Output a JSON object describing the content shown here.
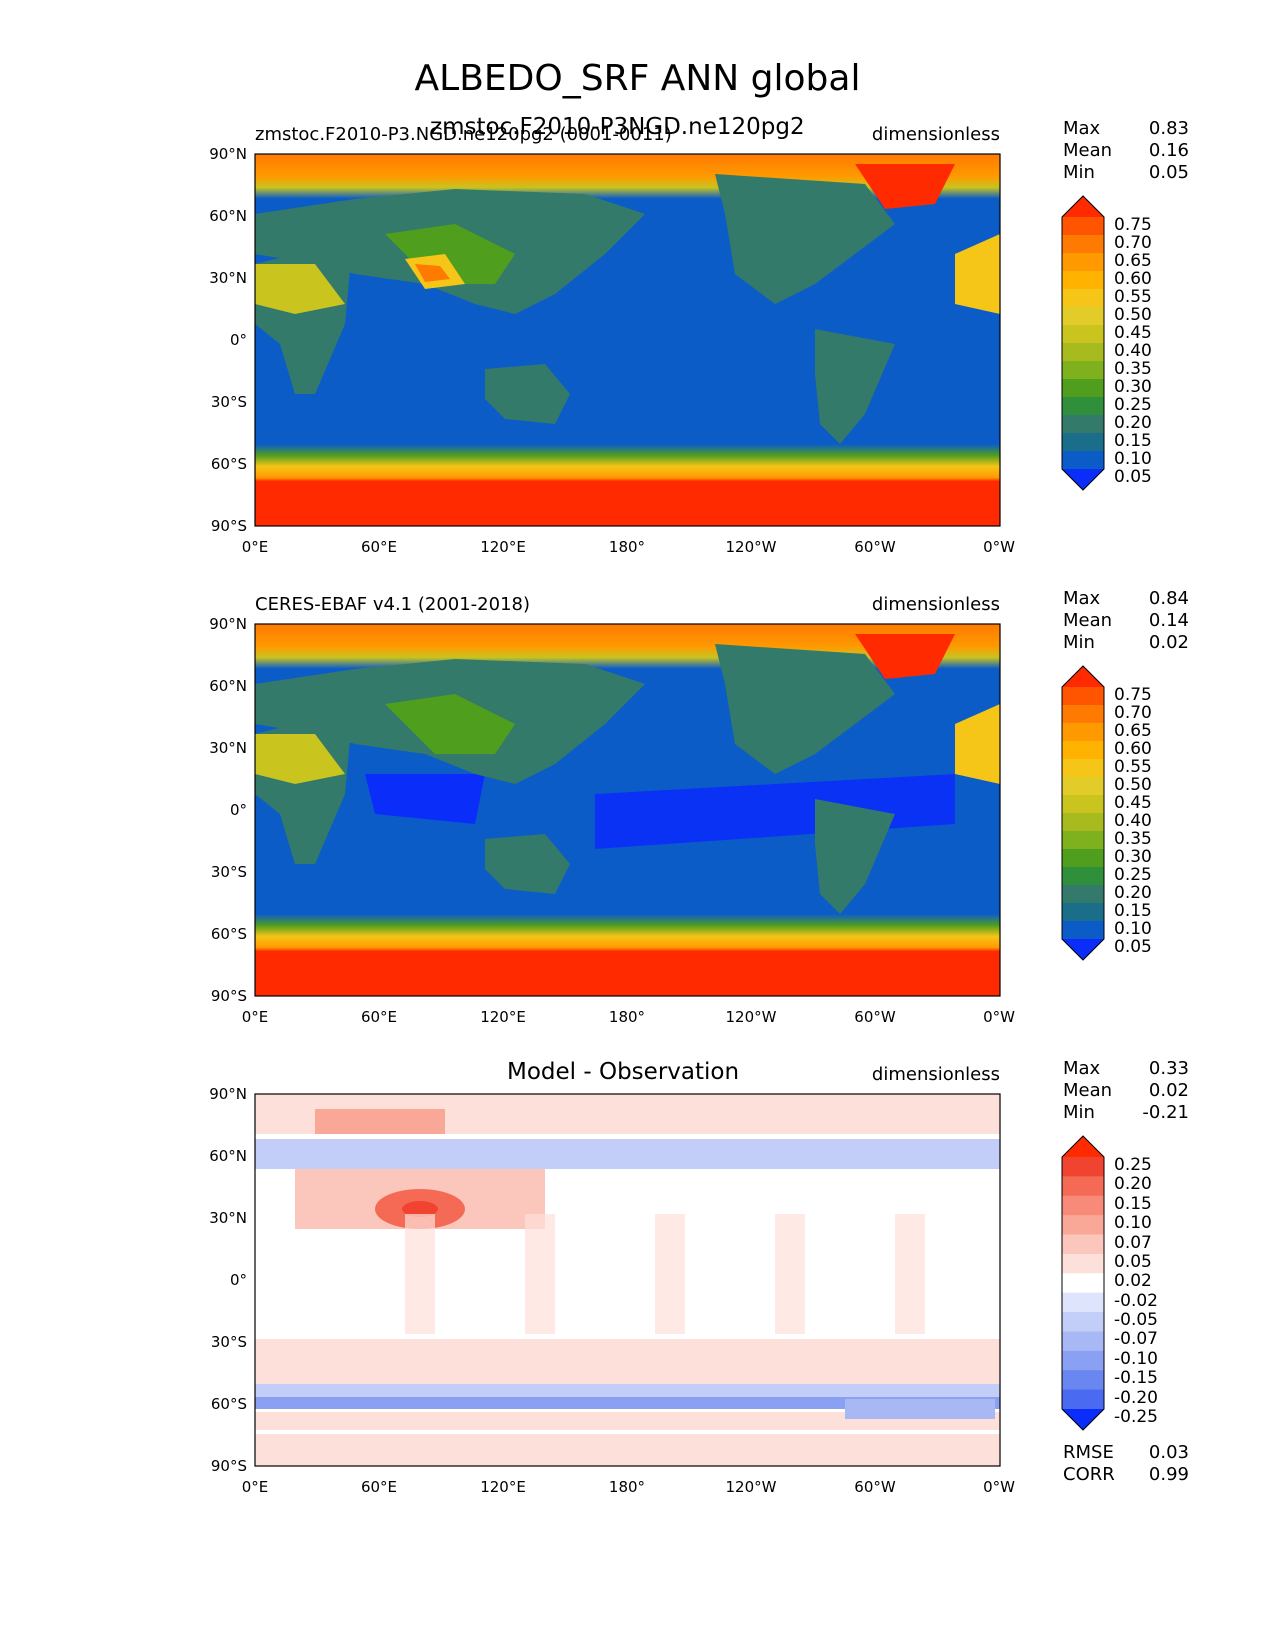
{
  "chart_data": {
    "type": "heatmap",
    "title": "ALBEDO_SRF ANN global",
    "panels": [
      {
        "id": "model",
        "title": "zmstoc.F2010-P3NGD.ne120pg2",
        "subtitle": "zmstoc.F2010-P3.NGD.ne120pg2 (0001-0011)",
        "units": "dimensionless",
        "stats": {
          "max": "0.83",
          "mean": "0.16",
          "min": "0.05"
        },
        "x_ticks": [
          "0°E",
          "60°E",
          "120°E",
          "180°",
          "120°W",
          "60°W",
          "0°W"
        ],
        "y_ticks": [
          "90°N",
          "60°N",
          "30°N",
          "0°",
          "30°S",
          "60°S",
          "90°S"
        ],
        "colorbar_levels": [
          "0.75",
          "0.70",
          "0.65",
          "0.60",
          "0.55",
          "0.50",
          "0.45",
          "0.40",
          "0.35",
          "0.30",
          "0.25",
          "0.20",
          "0.15",
          "0.10",
          "0.05"
        ],
        "colorbar_colors": [
          "#ff2a00",
          "#ff5500",
          "#ff7a00",
          "#ff9900",
          "#ffb300",
          "#f5c518",
          "#e2cc2a",
          "#c9c41e",
          "#a8bb1e",
          "#7fb01e",
          "#4f9e1e",
          "#2f8f3a",
          "#337a6a",
          "#1a6e8a",
          "#0c5cc8",
          "#0a2dfa"
        ]
      },
      {
        "id": "obs",
        "title": "",
        "subtitle": "CERES-EBAF v4.1 (2001-2018)",
        "units": "dimensionless",
        "stats": {
          "max": "0.84",
          "mean": "0.14",
          "min": "0.02"
        },
        "x_ticks": [
          "0°E",
          "60°E",
          "120°E",
          "180°",
          "120°W",
          "60°W",
          "0°W"
        ],
        "y_ticks": [
          "90°N",
          "60°N",
          "30°N",
          "0°",
          "30°S",
          "60°S",
          "90°S"
        ],
        "colorbar_levels": [
          "0.75",
          "0.70",
          "0.65",
          "0.60",
          "0.55",
          "0.50",
          "0.45",
          "0.40",
          "0.35",
          "0.30",
          "0.25",
          "0.20",
          "0.15",
          "0.10",
          "0.05"
        ],
        "colorbar_colors": [
          "#ff2a00",
          "#ff5500",
          "#ff7a00",
          "#ff9900",
          "#ffb300",
          "#f5c518",
          "#e2cc2a",
          "#c9c41e",
          "#a8bb1e",
          "#7fb01e",
          "#4f9e1e",
          "#2f8f3a",
          "#337a6a",
          "#1a6e8a",
          "#0c5cc8",
          "#0a2dfa"
        ]
      },
      {
        "id": "diff",
        "title": "Model - Observation",
        "subtitle": "",
        "units": "dimensionless",
        "stats": {
          "max": "0.33",
          "mean": "0.02",
          "min": "-0.21"
        },
        "rmse": "0.03",
        "corr": "0.99",
        "x_ticks": [
          "0°E",
          "60°E",
          "120°E",
          "180°",
          "120°W",
          "60°W",
          "0°W"
        ],
        "y_ticks": [
          "90°N",
          "60°N",
          "30°N",
          "0°",
          "30°S",
          "60°S",
          "90°S"
        ],
        "colorbar_levels": [
          "0.25",
          "0.20",
          "0.15",
          "0.10",
          "0.07",
          "0.05",
          "0.02",
          "-0.02",
          "-0.05",
          "-0.07",
          "-0.10",
          "-0.15",
          "-0.20",
          "-0.25"
        ],
        "colorbar_colors": [
          "#ff2a00",
          "#f04430",
          "#f56a55",
          "#f78a78",
          "#f9a898",
          "#fbc6bc",
          "#fde0da",
          "#ffffff",
          "#dde4fb",
          "#c3cef8",
          "#a8b8f5",
          "#8aa0f2",
          "#6a86f0",
          "#4a6af2",
          "#0a2dfa"
        ]
      }
    ]
  },
  "labels": {
    "max": "Max",
    "mean": "Mean",
    "min": "Min",
    "rmse": "RMSE",
    "corr": "CORR"
  }
}
